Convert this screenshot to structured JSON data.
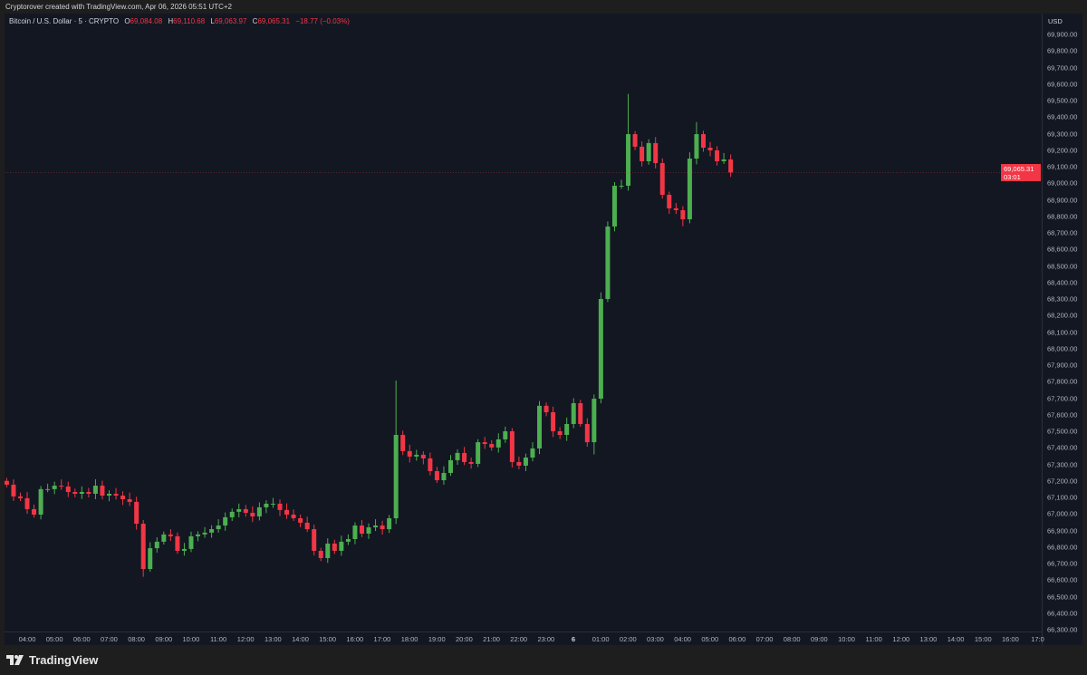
{
  "credit": "Cryptorover created with TradingView.com, Apr 06, 2026 05:51 UTC+2",
  "legend": {
    "symbol": "Bitcoin / U.S. Dollar · 5 · CRYPTO",
    "o_label": "O",
    "o": "69,084.08",
    "h_label": "H",
    "h": "69,110.68",
    "l_label": "L",
    "l": "69,063.97",
    "c_label": "C",
    "c": "69,065.31",
    "change": "−18.77 (−0.03%)"
  },
  "price_axis": {
    "currency": "USD",
    "current_price": "69,065.31",
    "countdown": "03:01"
  },
  "brand": "TradingView",
  "colors": {
    "up": "#26a69a",
    "up_render": "#4caf50",
    "down": "#f23645",
    "background": "#131722",
    "current_price_bg": "#f23645"
  },
  "chart_data": {
    "type": "candlestick",
    "title": "Bitcoin / U.S. Dollar · 5 · CRYPTO",
    "interval_note": "approximated at 15-minute resolution",
    "x_start": "03:15",
    "x_step_minutes": 15,
    "ylim": [
      66250,
      69950
    ],
    "grid": false,
    "y_ticks": [
      "69,900.00",
      "69,800.00",
      "69,700.00",
      "69,600.00",
      "69,500.00",
      "69,400.00",
      "69,300.00",
      "69,200.00",
      "69,100.00",
      "69,000.00",
      "68,900.00",
      "68,800.00",
      "68,700.00",
      "68,600.00",
      "68,500.00",
      "68,400.00",
      "68,300.00",
      "68,200.00",
      "68,100.00",
      "68,000.00",
      "67,900.00",
      "67,800.00",
      "67,700.00",
      "67,600.00",
      "67,500.00",
      "67,400.00",
      "67,300.00",
      "67,200.00",
      "67,100.00",
      "67,000.00",
      "66,900.00",
      "66,800.00",
      "66,700.00",
      "66,600.00",
      "66,500.00",
      "66,400.00",
      "66,300.00"
    ],
    "x_ticks": [
      "04:00",
      "05:00",
      "06:00",
      "07:00",
      "08:00",
      "09:00",
      "10:00",
      "11:00",
      "12:00",
      "13:00",
      "14:00",
      "15:00",
      "16:00",
      "17:00",
      "18:00",
      "19:00",
      "20:00",
      "21:00",
      "22:00",
      "23:00",
      "6",
      "01:00",
      "02:00",
      "03:00",
      "04:00",
      "05:00",
      "06:00",
      "07:00",
      "08:00",
      "09:00",
      "10:00",
      "11:00",
      "12:00",
      "13:00",
      "14:00",
      "15:00",
      "16:00",
      "17:0"
    ],
    "closes": [
      67177,
      67106,
      67095,
      67029,
      66996,
      67150,
      67150,
      67171,
      67166,
      67133,
      67122,
      67133,
      67122,
      67171,
      67111,
      67122,
      67111,
      67089,
      67073,
      66941,
      66667,
      66793,
      66832,
      66876,
      66865,
      66777,
      66788,
      66865,
      66876,
      66887,
      66908,
      66930,
      66980,
      67013,
      67029,
      67007,
      66985,
      67040,
      67062,
      67062,
      67024,
      66996,
      66974,
      66947,
      66908,
      66777,
      66733,
      66821,
      66777,
      66832,
      66848,
      66930,
      66881,
      66919,
      66930,
      66908,
      66974,
      67478,
      67380,
      67347,
      67358,
      67336,
      67259,
      67204,
      67248,
      67325,
      67369,
      67314,
      67303,
      67434,
      67423,
      67402,
      67451,
      67500,
      67314,
      67292,
      67341,
      67396,
      67654,
      67615,
      67500,
      67478,
      67544,
      67670,
      67544,
      67434,
      67697,
      68300,
      68738,
      68985,
      68985,
      69297,
      69221,
      69133,
      69243,
      69122,
      68930,
      68848,
      68837,
      68782,
      69149,
      69297,
      69215,
      69199,
      69133,
      69144,
      69065
    ],
    "first_open": 67200,
    "extremes": [
      {
        "index": 20,
        "low": 66620
      },
      {
        "index": 57,
        "high": 67807
      },
      {
        "index": 86,
        "low": 67360
      },
      {
        "index": 91,
        "high": 69540
      },
      {
        "index": 101,
        "high": 69370
      },
      {
        "index": 99,
        "low": 68740
      }
    ]
  }
}
